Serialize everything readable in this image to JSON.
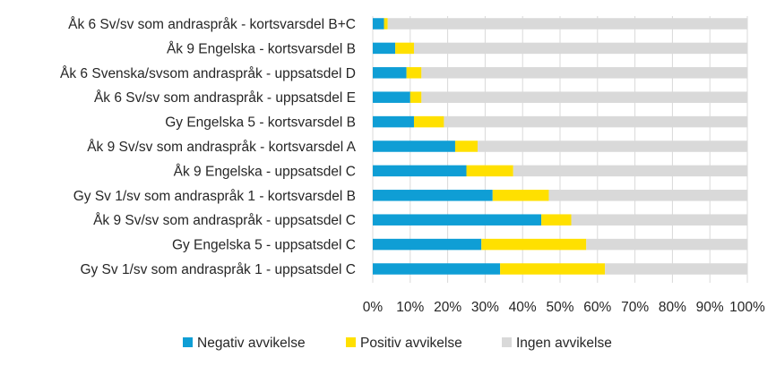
{
  "chart_data": {
    "type": "bar",
    "orientation": "horizontal",
    "stacked": true,
    "categories": [
      "Åk 6 Sv/sv som andraspråk - kortsvarsdel B+C",
      "Åk 9 Engelska - kortsvarsdel B",
      "Åk 6 Svenska/svsom andraspråk - uppsatsdel D",
      "Åk 6 Sv/sv som andraspråk - uppsatsdel E",
      "Gy Engelska 5 - kortsvarsdel B",
      "Åk 9 Sv/sv som andraspråk - kortsvarsdel A",
      "Åk 9 Engelska - uppsatsdel C",
      "Gy Sv 1/sv som andraspråk 1 - kortsvarsdel B",
      "Åk 9 Sv/sv som andraspråk - uppsatsdel C",
      "Gy Engelska 5 - uppsatsdel C",
      "Gy Sv 1/sv som andraspråk 1 - uppsatsdel C"
    ],
    "series": [
      {
        "name": "Negativ avvikelse",
        "color": "#0f9ed5",
        "values": [
          3,
          6,
          9,
          10,
          11,
          22,
          25,
          32,
          45,
          29,
          34
        ]
      },
      {
        "name": "Positiv avvikelse",
        "color": "#ffe000",
        "values": [
          1,
          5,
          4,
          3,
          8,
          6,
          12.5,
          15,
          8,
          28,
          28
        ]
      },
      {
        "name": "Ingen avvikelse",
        "color": "#d9d9d9",
        "values": [
          96,
          89,
          87,
          87,
          81,
          72,
          62.5,
          53,
          47,
          43,
          38
        ]
      }
    ],
    "xlim": [
      0,
      100
    ],
    "x_ticks": [
      "0%",
      "10%",
      "20%",
      "30%",
      "40%",
      "50%",
      "60%",
      "70%",
      "80%",
      "90%",
      "100%"
    ],
    "grid": true,
    "legend_position": "bottom",
    "title": "",
    "xlabel": "",
    "ylabel": ""
  }
}
